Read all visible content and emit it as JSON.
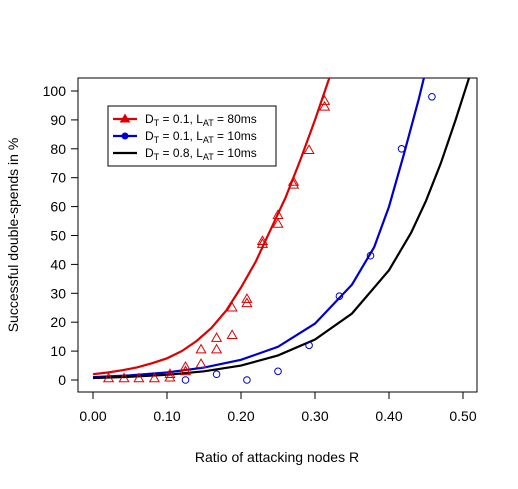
{
  "chart_data": {
    "type": "scatter",
    "title": "",
    "xlabel": "Ratio of attacking nodes R",
    "ylabel": "Successful double-spends in %",
    "xlim": [
      0.0,
      0.5
    ],
    "ylim": [
      0,
      100
    ],
    "x_ticks": [
      "0.00",
      "0.10",
      "0.20",
      "0.30",
      "0.40",
      "0.50"
    ],
    "x_tick_values": [
      0.0,
      0.1,
      0.2,
      0.3,
      0.4,
      0.5
    ],
    "y_ticks": [
      "0",
      "10",
      "20",
      "30",
      "40",
      "50",
      "60",
      "70",
      "80",
      "90",
      "100"
    ],
    "y_tick_values": [
      0,
      10,
      20,
      30,
      40,
      50,
      60,
      70,
      80,
      90,
      100
    ],
    "grid": false,
    "legend_position": "top-left",
    "legend": [
      {
        "main": "D",
        "sub1": "T",
        "mid": " = 0.1, L",
        "sub2": "AT",
        "tail": " = 80ms",
        "color": "#dd0000",
        "marker": "triangle"
      },
      {
        "main": "D",
        "sub1": "T",
        "mid": " = 0.1, L",
        "sub2": "AT",
        "tail": " = 10ms",
        "color": "#0000cc",
        "marker": "circle"
      },
      {
        "main": "D",
        "sub1": "T",
        "mid": " = 0.8, L",
        "sub2": "AT",
        "tail": " = 10ms",
        "color": "#000000",
        "marker": "none"
      }
    ],
    "series": [
      {
        "name": "DT = 0.1, LAT = 80ms",
        "color": "#dd0000",
        "marker": "triangle",
        "points": [
          [
            0.021,
            0.5
          ],
          [
            0.042,
            0.5
          ],
          [
            0.062,
            0.5
          ],
          [
            0.083,
            0.5
          ],
          [
            0.104,
            0.8
          ],
          [
            0.104,
            2.0
          ],
          [
            0.125,
            3.0
          ],
          [
            0.125,
            4.5
          ],
          [
            0.146,
            5.5
          ],
          [
            0.146,
            10.5
          ],
          [
            0.167,
            10.5
          ],
          [
            0.167,
            14.5
          ],
          [
            0.188,
            15.5
          ],
          [
            0.188,
            25.0
          ],
          [
            0.208,
            26.5
          ],
          [
            0.208,
            28.0
          ],
          [
            0.229,
            47.0
          ],
          [
            0.229,
            48.0
          ],
          [
            0.25,
            54.0
          ],
          [
            0.25,
            57.0
          ],
          [
            0.271,
            67.5
          ],
          [
            0.271,
            68.5
          ],
          [
            0.292,
            79.5
          ],
          [
            0.313,
            94.5
          ],
          [
            0.313,
            96.5
          ]
        ],
        "curve": [
          [
            0.0,
            2.0
          ],
          [
            0.02,
            2.6
          ],
          [
            0.04,
            3.4
          ],
          [
            0.06,
            4.4
          ],
          [
            0.08,
            5.8
          ],
          [
            0.1,
            7.5
          ],
          [
            0.12,
            10.0
          ],
          [
            0.14,
            13.5
          ],
          [
            0.16,
            18.0
          ],
          [
            0.18,
            24.0
          ],
          [
            0.2,
            32.0
          ],
          [
            0.22,
            41.0
          ],
          [
            0.24,
            52.0
          ],
          [
            0.26,
            63.0
          ],
          [
            0.28,
            76.0
          ],
          [
            0.3,
            90.0
          ],
          [
            0.32,
            105.0
          ]
        ]
      },
      {
        "name": "DT = 0.1, LAT = 10ms",
        "color": "#0000cc",
        "marker": "circle",
        "points": [
          [
            0.125,
            0.0
          ],
          [
            0.167,
            2.0
          ],
          [
            0.208,
            0.0
          ],
          [
            0.25,
            3.0
          ],
          [
            0.292,
            12.0
          ],
          [
            0.333,
            29.0
          ],
          [
            0.375,
            43.0
          ],
          [
            0.417,
            80.0
          ],
          [
            0.458,
            98.0
          ]
        ],
        "curve": [
          [
            0.0,
            1.0
          ],
          [
            0.05,
            1.6
          ],
          [
            0.1,
            2.6
          ],
          [
            0.15,
            4.3
          ],
          [
            0.2,
            7.0
          ],
          [
            0.25,
            11.5
          ],
          [
            0.3,
            19.5
          ],
          [
            0.35,
            33.0
          ],
          [
            0.38,
            46.0
          ],
          [
            0.4,
            60.0
          ],
          [
            0.42,
            78.0
          ],
          [
            0.44,
            97.0
          ],
          [
            0.46,
            118.0
          ]
        ]
      },
      {
        "name": "DT = 0.8, LAT = 10ms",
        "color": "#000000",
        "marker": "none",
        "points": [],
        "curve": [
          [
            0.0,
            0.7
          ],
          [
            0.05,
            1.1
          ],
          [
            0.1,
            1.8
          ],
          [
            0.15,
            3.0
          ],
          [
            0.2,
            5.0
          ],
          [
            0.25,
            8.5
          ],
          [
            0.3,
            14.0
          ],
          [
            0.35,
            23.0
          ],
          [
            0.4,
            38.0
          ],
          [
            0.43,
            51.0
          ],
          [
            0.45,
            62.0
          ],
          [
            0.47,
            75.0
          ],
          [
            0.49,
            90.0
          ],
          [
            0.51,
            106.0
          ]
        ]
      }
    ]
  }
}
